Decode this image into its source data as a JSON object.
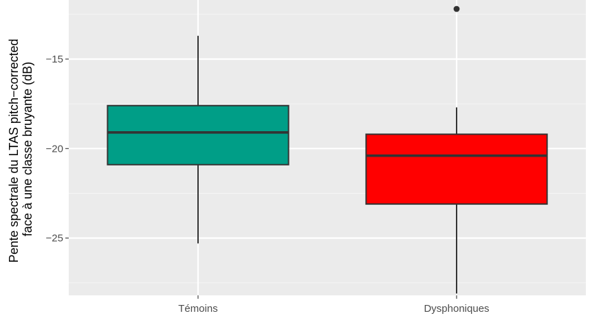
{
  "chart_data": {
    "type": "boxplot",
    "title": "",
    "xlabel": "",
    "ylabel_lines": [
      "Pente spectrale du LTAS pitch−corrected",
      "face à une classe bruyante (dB)"
    ],
    "ylim": [
      -28.2,
      -11.7
    ],
    "y_ticks": [
      -15,
      -20,
      -25
    ],
    "y_tick_labels": [
      "−15",
      "−20",
      "−25"
    ],
    "y_minor_ticks": [
      -12.5,
      -17.5,
      -22.5,
      -27.5
    ],
    "grid": true,
    "legend": "none",
    "categories": [
      "Témoins",
      "Dysphoniques"
    ],
    "boxes": [
      {
        "category": "Témoins",
        "whisker_low": -25.3,
        "q1": -20.9,
        "median": -19.1,
        "q3": -17.6,
        "whisker_high": -13.7,
        "outliers": [],
        "fill": "#009E87"
      },
      {
        "category": "Dysphoniques",
        "whisker_low": -28.1,
        "q1": -23.1,
        "median": -20.4,
        "q3": -19.2,
        "whisker_high": -17.7,
        "outliers": [
          -12.2
        ],
        "fill": "#FF0000"
      }
    ],
    "colors": {
      "panel_background": "#EBEBEB",
      "grid_major": "#FFFFFF",
      "grid_minor": "#F5F5F5",
      "box_outline": "#333333",
      "tick_text": "#4D4D4D"
    }
  }
}
